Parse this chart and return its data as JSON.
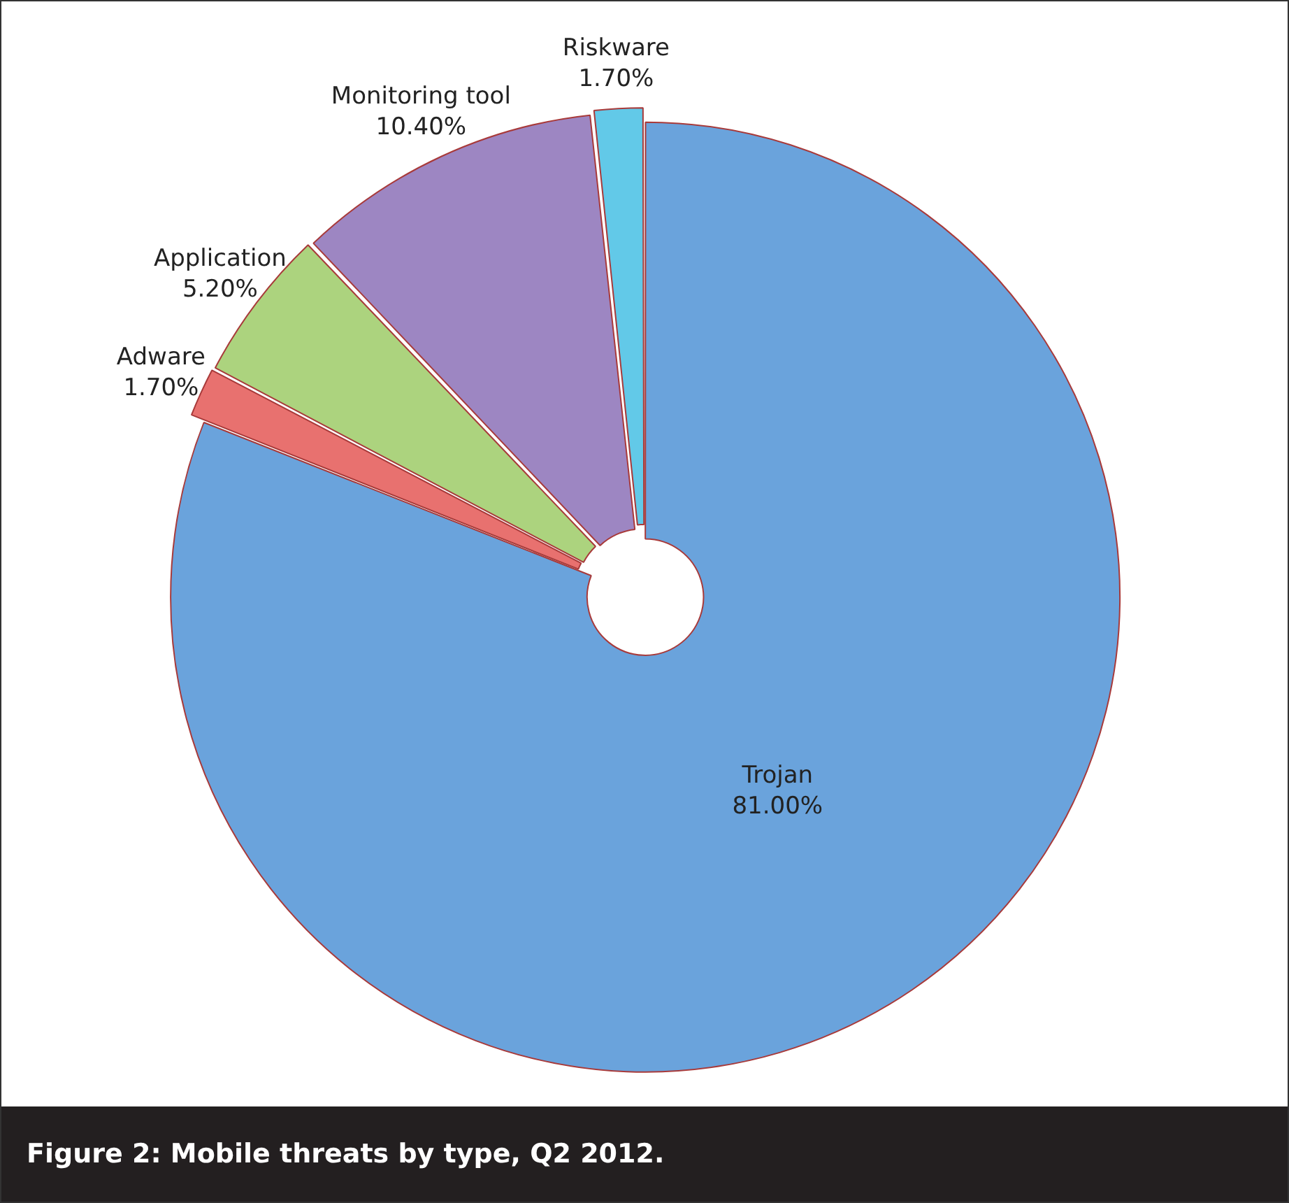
{
  "chart_data": {
    "type": "donut",
    "categories": [
      "Trojan",
      "Adware",
      "Application",
      "Monitoring tool",
      "Riskware"
    ],
    "values": [
      81.0,
      1.7,
      5.2,
      10.4,
      1.7
    ],
    "colors": [
      "#6aa3dc",
      "#e8716f",
      "#acd37e",
      "#9d86c2",
      "#62c9e8"
    ],
    "value_labels": [
      "81.00%",
      "1.70%",
      "5.20%",
      "10.40%",
      "1.70%"
    ],
    "legend": false,
    "annotations": [
      "Figure 2: Mobile threats by type, Q2 2012."
    ]
  }
}
